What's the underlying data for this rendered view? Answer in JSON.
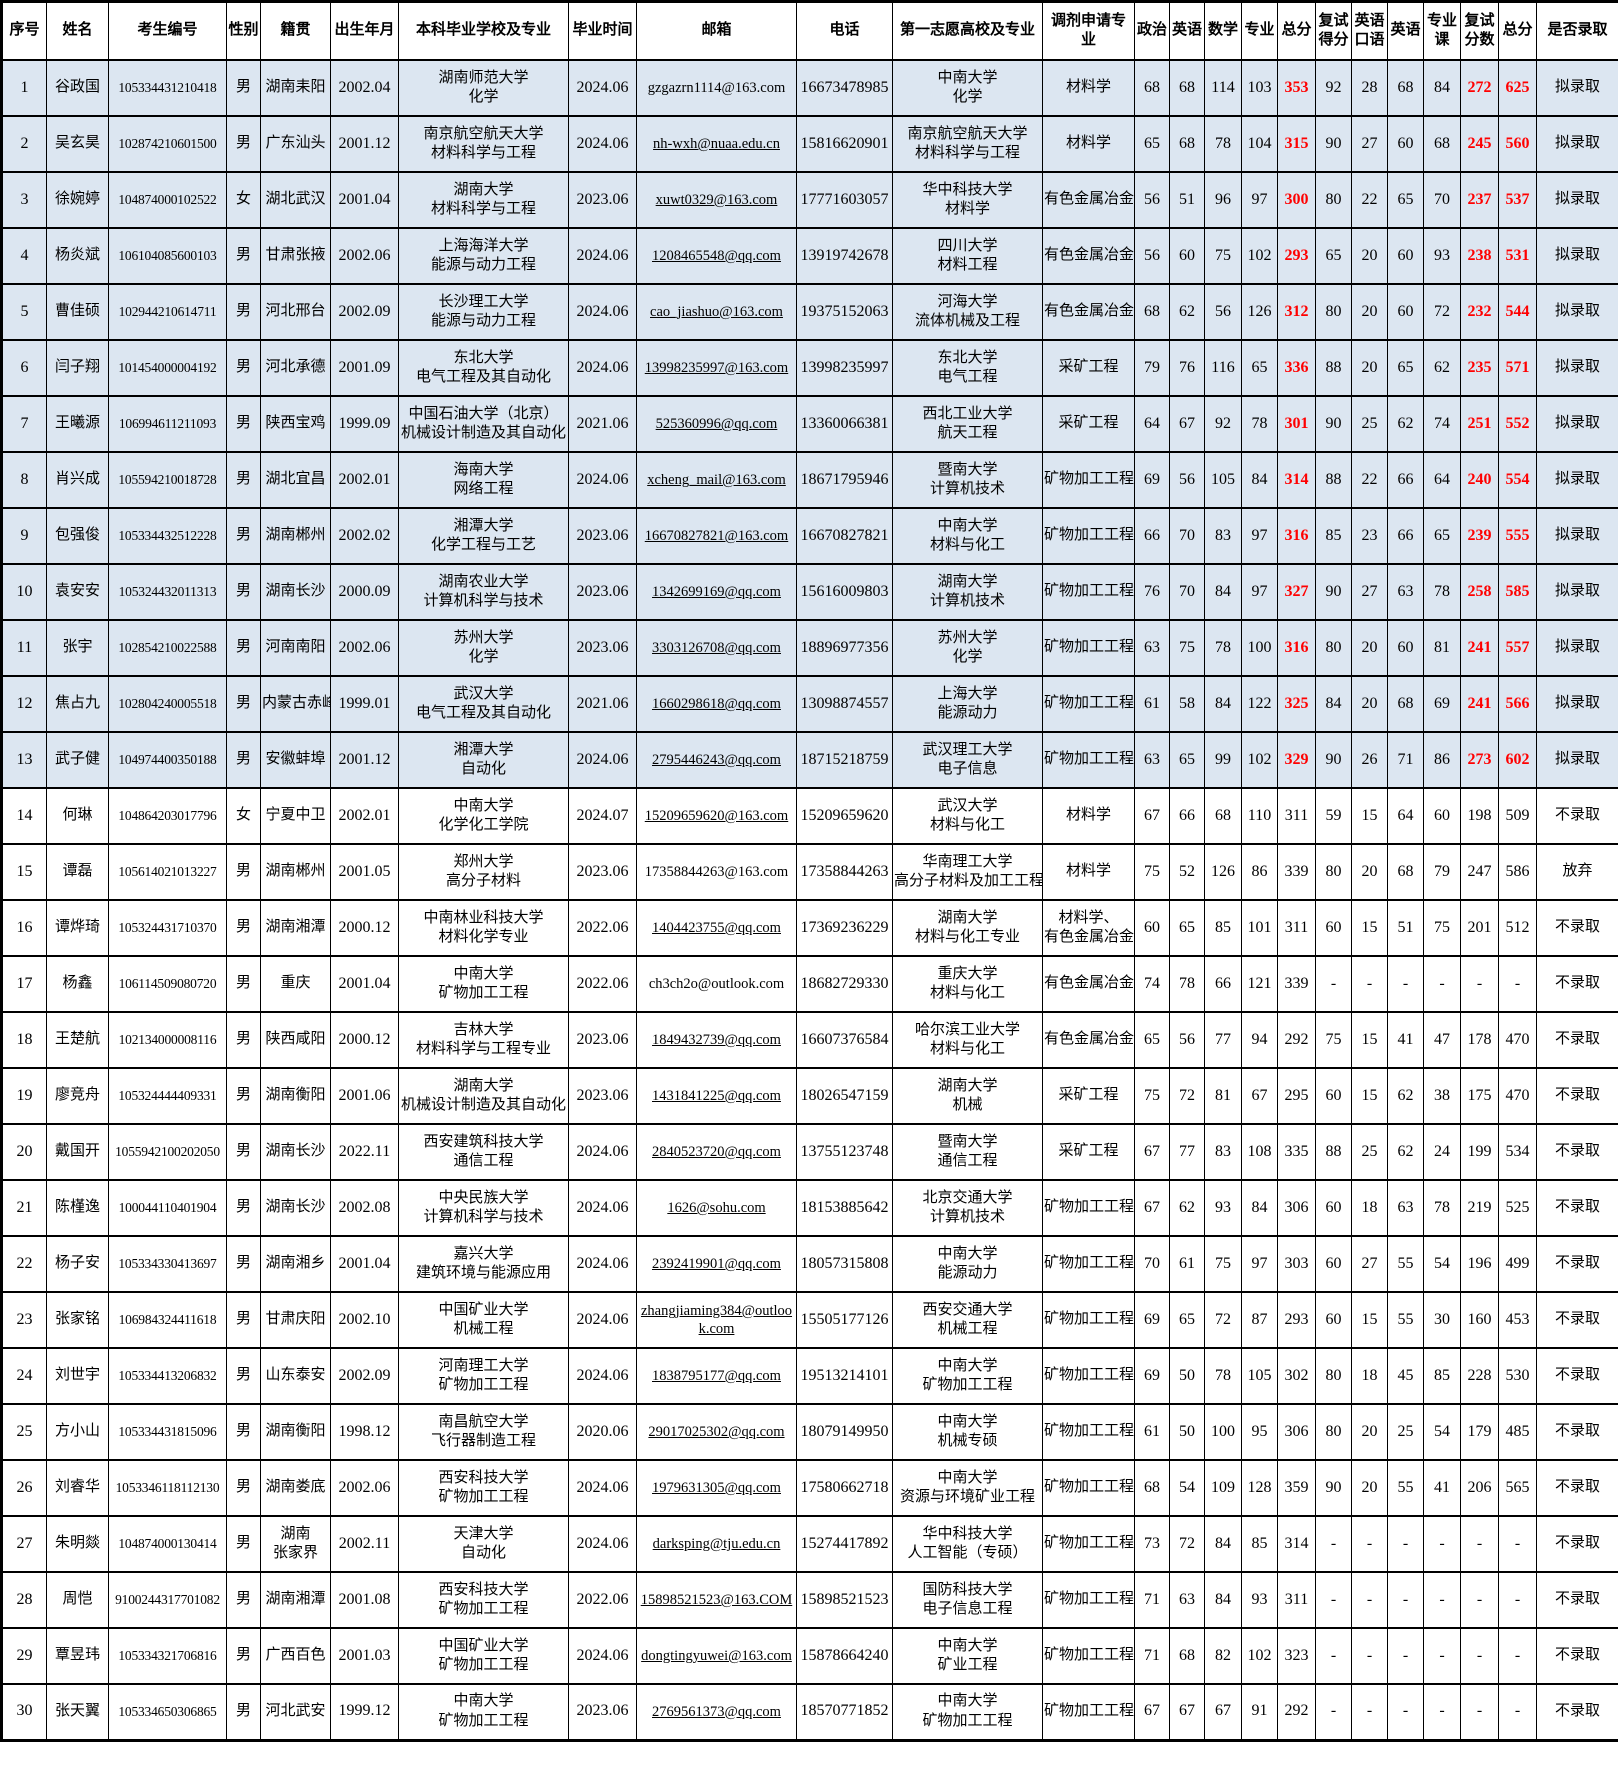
{
  "colors": {
    "highlight_row": "#dce6f1",
    "score_red": "#ff0000"
  },
  "table": {
    "headers": [
      "序号",
      "姓名",
      "考生编号",
      "性别",
      "籍贯",
      "出生年月",
      "本科毕业学校及专业",
      "毕业时间",
      "邮箱",
      "电话",
      "第一志愿高校及专业",
      "调剂申请专业",
      "政治",
      "英语",
      "数学",
      "专业",
      "总分",
      "复试得分",
      "英语口语",
      "英语",
      "专业课",
      "复试分数",
      "总分",
      "是否录取"
    ],
    "rows": [
      {
        "highlight": true,
        "email_link": false,
        "cells": [
          "1",
          "谷政国",
          "105334431210418",
          "男",
          "湖南耒阳",
          "2002.04",
          "湖南师范大学\n化学",
          "2024.06",
          "gzgazrn1114@163.com",
          "16673478985",
          "中南大学\n化学",
          "材料学",
          "68",
          "68",
          "114",
          "103",
          "353",
          "92",
          "28",
          "68",
          "84",
          "272",
          "625",
          "拟录取"
        ]
      },
      {
        "highlight": true,
        "email_link": true,
        "cells": [
          "2",
          "吴玄昊",
          "102874210601500",
          "男",
          "广东汕头",
          "2001.12",
          "南京航空航天大学\n材料科学与工程",
          "2024.06",
          "nh-wxh@nuaa.edu.cn",
          "15816620901",
          "南京航空航天大学\n材料科学与工程",
          "材料学",
          "65",
          "68",
          "78",
          "104",
          "315",
          "90",
          "27",
          "60",
          "68",
          "245",
          "560",
          "拟录取"
        ]
      },
      {
        "highlight": true,
        "email_link": true,
        "cells": [
          "3",
          "徐婉婷",
          "104874000102522",
          "女",
          "湖北武汉",
          "2001.04",
          "湖南大学\n材料科学与工程",
          "2023.06",
          "xuwt0329@163.com",
          "17771603057",
          "华中科技大学\n材料学",
          "有色金属冶金",
          "56",
          "51",
          "96",
          "97",
          "300",
          "80",
          "22",
          "65",
          "70",
          "237",
          "537",
          "拟录取"
        ]
      },
      {
        "highlight": true,
        "email_link": true,
        "cells": [
          "4",
          "杨炎斌",
          "106104085600103",
          "男",
          "甘肃张掖",
          "2002.06",
          "上海海洋大学\n能源与动力工程",
          "2024.06",
          "1208465548@qq.com",
          "13919742678",
          "四川大学\n材料工程",
          "有色金属冶金",
          "56",
          "60",
          "75",
          "102",
          "293",
          "65",
          "20",
          "60",
          "93",
          "238",
          "531",
          "拟录取"
        ]
      },
      {
        "highlight": true,
        "email_link": true,
        "cells": [
          "5",
          "曹佳硕",
          "102944210614711",
          "男",
          "河北邢台",
          "2002.09",
          "长沙理工大学\n能源与动力工程",
          "2024.06",
          "cao_jiashuo@163.com",
          "19375152063",
          "河海大学\n流体机械及工程",
          "有色金属冶金",
          "68",
          "62",
          "56",
          "126",
          "312",
          "80",
          "20",
          "60",
          "72",
          "232",
          "544",
          "拟录取"
        ]
      },
      {
        "highlight": true,
        "email_link": true,
        "cells": [
          "6",
          "闫子翔",
          "101454000004192",
          "男",
          "河北承德",
          "2001.09",
          "东北大学\n电气工程及其自动化",
          "2024.06",
          "13998235997@163.com",
          "13998235997",
          "东北大学\n电气工程",
          "采矿工程",
          "79",
          "76",
          "116",
          "65",
          "336",
          "88",
          "20",
          "65",
          "62",
          "235",
          "571",
          "拟录取"
        ]
      },
      {
        "highlight": true,
        "email_link": true,
        "cells": [
          "7",
          "王曦源",
          "106994611211093",
          "男",
          "陕西宝鸡",
          "1999.09",
          "中国石油大学（北京）\n机械设计制造及其自动化",
          "2021.06",
          "525360996@qq.com",
          "13360066381",
          "西北工业大学\n航天工程",
          "采矿工程",
          "64",
          "67",
          "92",
          "78",
          "301",
          "90",
          "25",
          "62",
          "74",
          "251",
          "552",
          "拟录取"
        ]
      },
      {
        "highlight": true,
        "email_link": true,
        "cells": [
          "8",
          "肖兴成",
          "105594210018728",
          "男",
          "湖北宜昌",
          "2002.01",
          "海南大学\n网络工程",
          "2024.06",
          "xcheng_mail@163.com",
          "18671795946",
          "暨南大学\n计算机技术",
          "矿物加工工程",
          "69",
          "56",
          "105",
          "84",
          "314",
          "88",
          "22",
          "66",
          "64",
          "240",
          "554",
          "拟录取"
        ]
      },
      {
        "highlight": true,
        "email_link": true,
        "cells": [
          "9",
          "包强俊",
          "105334432512228",
          "男",
          "湖南郴州",
          "2002.02",
          "湘潭大学\n化学工程与工艺",
          "2023.06",
          "16670827821@163.com",
          "16670827821",
          "中南大学\n材料与化工",
          "矿物加工工程",
          "66",
          "70",
          "83",
          "97",
          "316",
          "85",
          "23",
          "66",
          "65",
          "239",
          "555",
          "拟录取"
        ]
      },
      {
        "highlight": true,
        "email_link": true,
        "cells": [
          "10",
          "袁安安",
          "105324432011313",
          "男",
          "湖南长沙",
          "2000.09",
          "湖南农业大学\n计算机科学与技术",
          "2023.06",
          "1342699169@qq.com",
          "15616009803",
          "湖南大学\n计算机技术",
          "矿物加工工程",
          "76",
          "70",
          "84",
          "97",
          "327",
          "90",
          "27",
          "63",
          "78",
          "258",
          "585",
          "拟录取"
        ]
      },
      {
        "highlight": true,
        "email_link": true,
        "cells": [
          "11",
          "张宇",
          "102854210022588",
          "男",
          "河南南阳",
          "2002.06",
          "苏州大学\n化学",
          "2023.06",
          "3303126708@qq.com",
          "18896977356",
          "苏州大学\n化学",
          "矿物加工工程",
          "63",
          "75",
          "78",
          "100",
          "316",
          "80",
          "20",
          "60",
          "81",
          "241",
          "557",
          "拟录取"
        ]
      },
      {
        "highlight": true,
        "email_link": true,
        "cells": [
          "12",
          "焦占九",
          "102804240005518",
          "男",
          "内蒙古赤峰",
          "1999.01",
          "武汉大学\n电气工程及其自动化",
          "2021.06",
          "1660298618@qq.com",
          "13098874557",
          "上海大学\n能源动力",
          "矿物加工工程",
          "61",
          "58",
          "84",
          "122",
          "325",
          "84",
          "20",
          "68",
          "69",
          "241",
          "566",
          "拟录取"
        ]
      },
      {
        "highlight": true,
        "email_link": true,
        "cells": [
          "13",
          "武子健",
          "104974400350188",
          "男",
          "安徽蚌埠",
          "2001.12",
          "湘潭大学\n自动化",
          "2024.06",
          "2795446243@qq.com",
          "18715218759",
          "武汉理工大学\n电子信息",
          "矿物加工工程",
          "63",
          "65",
          "99",
          "102",
          "329",
          "90",
          "26",
          "71",
          "86",
          "273",
          "602",
          "拟录取"
        ]
      },
      {
        "highlight": false,
        "email_link": true,
        "cells": [
          "14",
          "何琳",
          "104864203017796",
          "女",
          "宁夏中卫",
          "2002.01",
          "中南大学\n化学化工学院",
          "2024.07",
          "15209659620@163.com",
          "15209659620",
          "武汉大学\n材料与化工",
          "材料学",
          "67",
          "66",
          "68",
          "110",
          "311",
          "59",
          "15",
          "64",
          "60",
          "198",
          "509",
          "不录取"
        ]
      },
      {
        "highlight": false,
        "email_link": false,
        "cells": [
          "15",
          "谭磊",
          "105614021013227",
          "男",
          "湖南郴州",
          "2001.05",
          "郑州大学\n高分子材料",
          "2023.06",
          "17358844263@163.com",
          "17358844263",
          "华南理工大学\n高分子材料及加工工程",
          "材料学",
          "75",
          "52",
          "126",
          "86",
          "339",
          "80",
          "20",
          "68",
          "79",
          "247",
          "586",
          "放弃"
        ]
      },
      {
        "highlight": false,
        "email_link": true,
        "cells": [
          "16",
          "谭烨琦",
          "105324431710370",
          "男",
          "湖南湘潭",
          "2000.12",
          "中南林业科技大学\n材料化学专业",
          "2022.06",
          "1404423755@qq.com",
          "17369236229",
          "湖南大学\n材料与化工专业",
          "材料学、有色金属冶金",
          "60",
          "65",
          "85",
          "101",
          "311",
          "60",
          "15",
          "51",
          "75",
          "201",
          "512",
          "不录取"
        ]
      },
      {
        "highlight": false,
        "email_link": false,
        "cells": [
          "17",
          "杨鑫",
          "106114509080720",
          "男",
          "重庆",
          "2001.04",
          "中南大学\n矿物加工工程",
          "2022.06",
          "ch3ch2o@outlook.com",
          "18682729330",
          "重庆大学\n材料与化工",
          "有色金属冶金",
          "74",
          "78",
          "66",
          "121",
          "339",
          "-",
          "-",
          "-",
          "-",
          "-",
          "-",
          "不录取"
        ]
      },
      {
        "highlight": false,
        "email_link": true,
        "cells": [
          "18",
          "王楚航",
          "102134000008116",
          "男",
          "陕西咸阳",
          "2000.12",
          "吉林大学\n材料科学与工程专业",
          "2023.06",
          "1849432739@qq.com",
          "16607376584",
          "哈尔滨工业大学\n材料与化工",
          "有色金属冶金",
          "65",
          "56",
          "77",
          "94",
          "292",
          "75",
          "15",
          "41",
          "47",
          "178",
          "470",
          "不录取"
        ]
      },
      {
        "highlight": false,
        "email_link": true,
        "cells": [
          "19",
          "廖竞舟",
          "105324444409331",
          "男",
          "湖南衡阳",
          "2001.06",
          "湖南大学\n机械设计制造及其自动化",
          "2023.06",
          "1431841225@qq.com",
          "18026547159",
          "湖南大学\n机械",
          "采矿工程",
          "75",
          "72",
          "81",
          "67",
          "295",
          "60",
          "15",
          "62",
          "38",
          "175",
          "470",
          "不录取"
        ]
      },
      {
        "highlight": false,
        "email_link": true,
        "cells": [
          "20",
          "戴国开",
          "1055942100202050",
          "男",
          "湖南长沙",
          "2022.11",
          "西安建筑科技大学\n通信工程",
          "2024.06",
          "2840523720@qq.com",
          "13755123748",
          "暨南大学\n通信工程",
          "采矿工程",
          "67",
          "77",
          "83",
          "108",
          "335",
          "88",
          "25",
          "62",
          "24",
          "199",
          "534",
          "不录取"
        ]
      },
      {
        "highlight": false,
        "email_link": true,
        "cells": [
          "21",
          "陈槿逸",
          "100044110401904",
          "男",
          "湖南长沙",
          "2002.08",
          "中央民族大学\n计算机科学与技术",
          "2024.06",
          "1626@sohu.com",
          "18153885642",
          "北京交通大学\n计算机技术",
          "矿物加工工程",
          "67",
          "62",
          "93",
          "84",
          "306",
          "60",
          "18",
          "63",
          "78",
          "219",
          "525",
          "不录取"
        ]
      },
      {
        "highlight": false,
        "email_link": true,
        "cells": [
          "22",
          "杨子安",
          "105334330413697",
          "男",
          "湖南湘乡",
          "2001.04",
          "嘉兴大学\n建筑环境与能源应用",
          "2024.06",
          "2392419901@qq.com",
          "18057315808",
          "中南大学\n能源动力",
          "矿物加工工程",
          "70",
          "61",
          "75",
          "97",
          "303",
          "60",
          "27",
          "55",
          "54",
          "196",
          "499",
          "不录取"
        ]
      },
      {
        "highlight": false,
        "email_link": true,
        "cells": [
          "23",
          "张家铭",
          "106984324411618",
          "男",
          "甘肃庆阳",
          "2002.10",
          "中国矿业大学\n机械工程",
          "2024.06",
          "zhangjiaming384@outlook.com",
          "15505177126",
          "西安交通大学\n机械工程",
          "矿物加工工程",
          "69",
          "65",
          "72",
          "87",
          "293",
          "60",
          "15",
          "55",
          "30",
          "160",
          "453",
          "不录取"
        ]
      },
      {
        "highlight": false,
        "email_link": true,
        "cells": [
          "24",
          "刘世宇",
          "105334413206832",
          "男",
          "山东泰安",
          "2002.09",
          "河南理工大学\n矿物加工工程",
          "2024.06",
          "1838795177@qq.com",
          "19513214101",
          "中南大学\n矿物加工工程",
          "矿物加工工程",
          "69",
          "50",
          "78",
          "105",
          "302",
          "80",
          "18",
          "45",
          "85",
          "228",
          "530",
          "不录取"
        ]
      },
      {
        "highlight": false,
        "email_link": true,
        "cells": [
          "25",
          "方小山",
          "105334431815096",
          "男",
          "湖南衡阳",
          "1998.12",
          "南昌航空大学\n飞行器制造工程",
          "2020.06",
          "29017025302@qq.com",
          "18079149950",
          "中南大学\n机械专硕",
          "矿物加工工程",
          "61",
          "50",
          "100",
          "95",
          "306",
          "80",
          "20",
          "25",
          "54",
          "179",
          "485",
          "不录取"
        ]
      },
      {
        "highlight": false,
        "email_link": true,
        "cells": [
          "26",
          "刘睿华",
          "1053346118112130",
          "男",
          "湖南娄底",
          "2002.06",
          "西安科技大学\n矿物加工工程",
          "2024.06",
          "1979631305@qq.com",
          "17580662718",
          "中南大学\n资源与环境矿业工程",
          "矿物加工工程",
          "68",
          "54",
          "109",
          "128",
          "359",
          "90",
          "20",
          "55",
          "41",
          "206",
          "565",
          "不录取"
        ]
      },
      {
        "highlight": false,
        "email_link": true,
        "cells": [
          "27",
          "朱明燚",
          "104874000130414",
          "男",
          "湖南\n张家界",
          "2002.11",
          "天津大学\n自动化",
          "2024.06",
          "darksping@tju.edu.cn",
          "15274417892",
          "华中科技大学\n人工智能（专硕）",
          "矿物加工工程",
          "73",
          "72",
          "84",
          "85",
          "314",
          "-",
          "-",
          "-",
          "-",
          "-",
          "-",
          "不录取"
        ]
      },
      {
        "highlight": false,
        "email_link": true,
        "cells": [
          "28",
          "周恺",
          "9100244317701082",
          "男",
          "湖南湘潭",
          "2001.08",
          "西安科技大学\n矿物加工工程",
          "2022.06",
          "15898521523@163.COM",
          "15898521523",
          "国防科技大学\n电子信息工程",
          "矿物加工工程",
          "71",
          "63",
          "84",
          "93",
          "311",
          "-",
          "-",
          "-",
          "-",
          "-",
          "-",
          "不录取"
        ]
      },
      {
        "highlight": false,
        "email_link": true,
        "cells": [
          "29",
          "覃昱玮",
          "105334321706816",
          "男",
          "广西百色",
          "2001.03",
          "中国矿业大学\n矿物加工工程",
          "2024.06",
          "dongtingyuwei@163.com",
          "15878664240",
          "中南大学\n矿业工程",
          "矿物加工工程",
          "71",
          "68",
          "82",
          "102",
          "323",
          "-",
          "-",
          "-",
          "-",
          "-",
          "-",
          "不录取"
        ]
      },
      {
        "highlight": false,
        "email_link": true,
        "cells": [
          "30",
          "张天翼",
          "105334650306865",
          "男",
          "河北武安",
          "1999.12",
          "中南大学\n矿物加工工程",
          "2023.06",
          "2769561373@qq.com",
          "18570771852",
          "中南大学\n矿物加工工程",
          "矿物加工工程",
          "67",
          "67",
          "67",
          "91",
          "292",
          "-",
          "-",
          "-",
          "-",
          "-",
          "-",
          "不录取"
        ]
      }
    ]
  }
}
